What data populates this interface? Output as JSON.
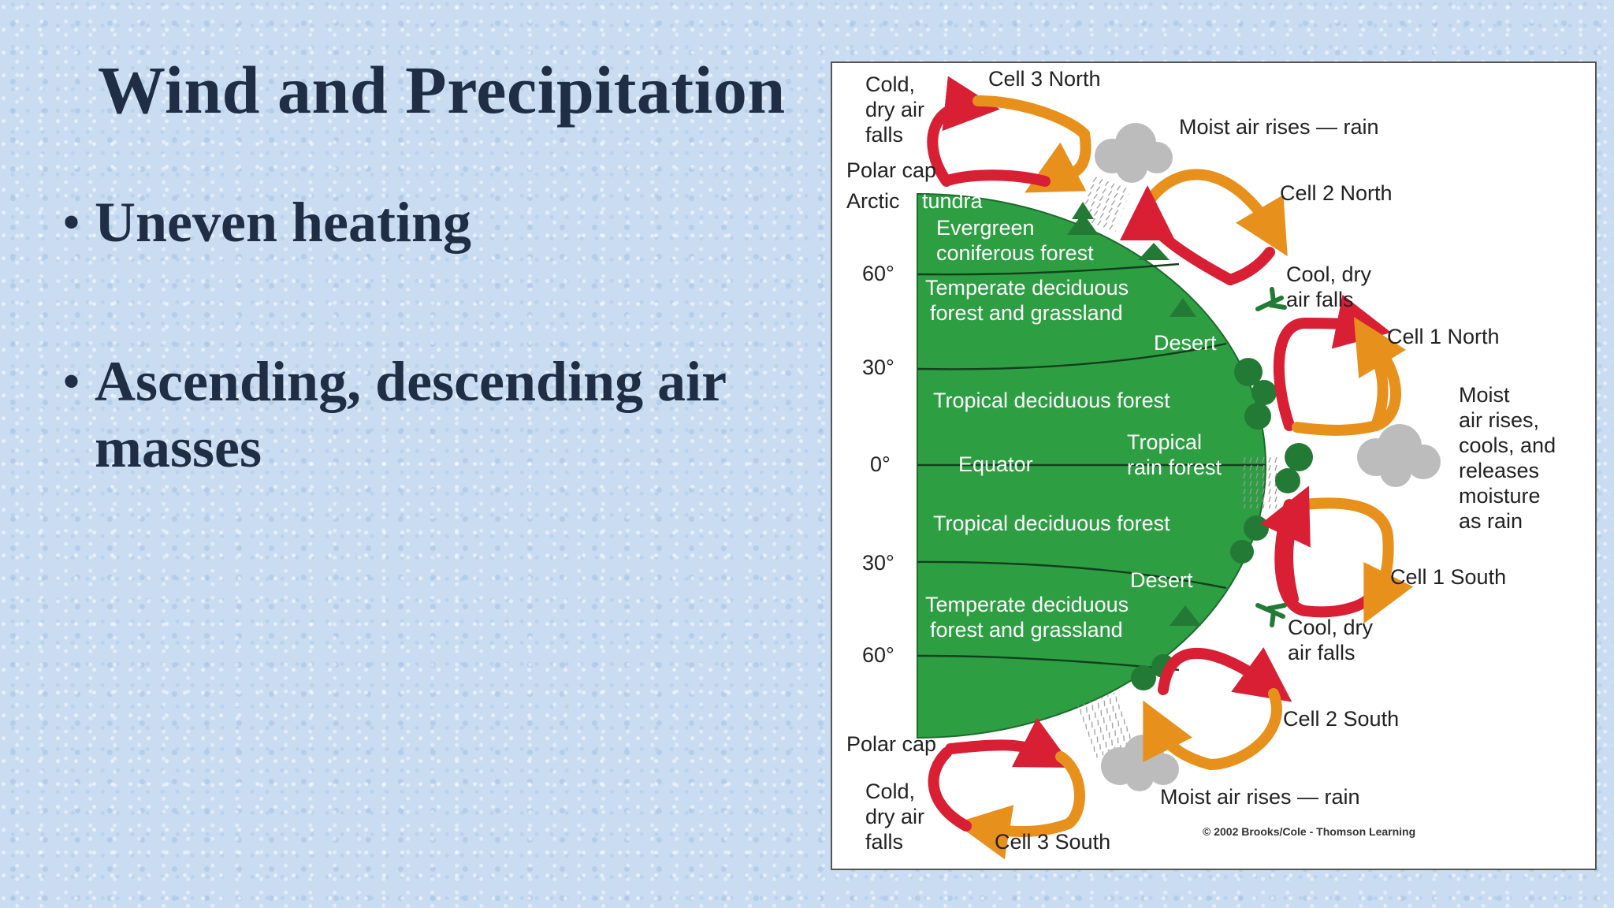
{
  "slide": {
    "title": "Wind and Precipitation",
    "bullets": [
      {
        "text": "Uneven heating"
      },
      {
        "text": "Ascending, descending air masses"
      }
    ]
  },
  "diagram": {
    "labels": {
      "cell3_north": "Cell 3 North",
      "cold_dry_top": [
        "Cold,",
        "dry air",
        "falls"
      ],
      "moist_rain_top": "Moist air rises — rain",
      "polar_cap_top": "Polar cap",
      "arctic": "Arctic",
      "tundra": "tundra",
      "cell2_north": "Cell 2 North",
      "evergreen": [
        "Evergreen",
        "coniferous forest"
      ],
      "lat_60_n": "60°",
      "cool_dry_n": [
        "Cool, dry",
        "air falls"
      ],
      "temperate_n": [
        "Temperate deciduous",
        "forest and grassland"
      ],
      "cell1_north": "Cell 1 North",
      "desert_n": "Desert",
      "lat_30_n": "30°",
      "moist_eq": [
        "Moist",
        "air rises,",
        "cools, and",
        "releases",
        "moisture",
        "as rain"
      ],
      "tropical_dec_n": "Tropical deciduous forest",
      "lat_0": "0°",
      "equator": "Equator",
      "rainforest": [
        "Tropical",
        "rain forest"
      ],
      "tropical_dec_s": "Tropical deciduous forest",
      "lat_30_s": "30°",
      "cell1_south": "Cell 1 South",
      "desert_s": "Desert",
      "temperate_s": [
        "Temperate deciduous",
        "forest and grassland"
      ],
      "cool_dry_s": [
        "Cool, dry",
        "air falls"
      ],
      "lat_60_s": "60°",
      "cell2_south": "Cell 2 South",
      "polar_cap_bottom": "Polar cap",
      "cold_dry_bottom": [
        "Cold,",
        "dry air",
        "falls"
      ],
      "moist_rain_bottom": "Moist air rises — rain",
      "cell3_south": "Cell 3 South",
      "copyright": "© 2002 Brooks/Cole - Thomson Learning"
    },
    "colors": {
      "earth": "#2e9e43",
      "warm_arrow": "#e8901c",
      "cold_arrow": "#d81f34",
      "cloud": "#bcbcbc"
    }
  }
}
